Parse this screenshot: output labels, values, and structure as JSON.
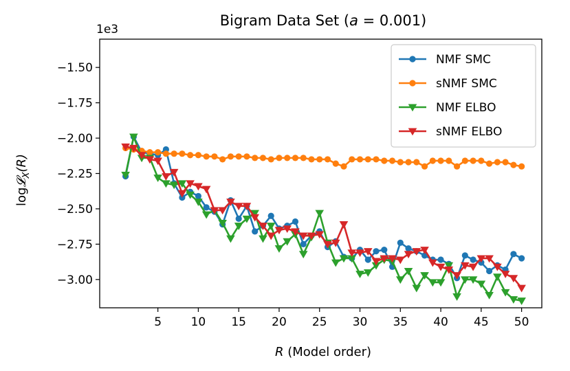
{
  "chart_data": {
    "type": "line",
    "title": "Bigram Data Set (a = 0.001)",
    "title_parts": {
      "prefix": "Bigram Data Set (",
      "variable": "a",
      "equals": " = 0.001)"
    },
    "xlabel": "R (Model order)",
    "xlabel_parts": {
      "variable": "R",
      "rest": " (Model order)"
    },
    "ylabel": "log𝓛X(R)",
    "ylabel_parts": {
      "log": "log",
      "script": "𝓛",
      "sub": "X",
      "arg": "(R)"
    },
    "y_offset_text": "1e3",
    "xlim": [
      -2.2,
      52.5
    ],
    "ylim": [
      -3.2,
      -1.3
    ],
    "x_ticks": [
      5,
      10,
      15,
      20,
      25,
      30,
      35,
      40,
      45,
      50
    ],
    "x_tick_labels": [
      "5",
      "10",
      "15",
      "20",
      "25",
      "30",
      "35",
      "40",
      "45",
      "50"
    ],
    "y_ticks": [
      -3.0,
      -2.75,
      -2.5,
      -2.25,
      -2.0,
      -1.75,
      -1.5
    ],
    "y_tick_labels": [
      "−3.00",
      "−2.75",
      "−2.50",
      "−2.25",
      "−2.00",
      "−1.75",
      "−1.50"
    ],
    "grid": false,
    "legend_position": "top-right",
    "x": [
      1,
      2,
      3,
      4,
      5,
      6,
      7,
      8,
      9,
      10,
      11,
      12,
      13,
      14,
      15,
      16,
      17,
      18,
      19,
      20,
      21,
      22,
      23,
      24,
      25,
      26,
      27,
      28,
      29,
      30,
      31,
      32,
      33,
      34,
      35,
      36,
      37,
      38,
      39,
      40,
      41,
      42,
      43,
      44,
      45,
      46,
      47,
      48,
      49,
      50
    ],
    "series": [
      {
        "name": "NMF SMC",
        "color": "#1f77b4",
        "marker": "circle",
        "values": [
          -2.27,
          -1.99,
          -2.1,
          -2.11,
          -2.12,
          -2.08,
          -2.32,
          -2.42,
          -2.38,
          -2.41,
          -2.49,
          -2.52,
          -2.61,
          -2.44,
          -2.57,
          -2.48,
          -2.66,
          -2.62,
          -2.55,
          -2.64,
          -2.62,
          -2.59,
          -2.75,
          -2.69,
          -2.66,
          -2.77,
          -2.73,
          -2.84,
          -2.85,
          -2.79,
          -2.86,
          -2.8,
          -2.79,
          -2.91,
          -2.74,
          -2.78,
          -2.8,
          -2.83,
          -2.86,
          -2.86,
          -2.89,
          -2.99,
          -2.83,
          -2.86,
          -2.88,
          -2.94,
          -2.9,
          -2.93,
          -2.82,
          -2.85
        ]
      },
      {
        "name": "sNMF SMC",
        "color": "#ff7f0e",
        "marker": "circle",
        "values": [
          -2.07,
          -2.08,
          -2.09,
          -2.1,
          -2.1,
          -2.11,
          -2.11,
          -2.11,
          -2.12,
          -2.12,
          -2.13,
          -2.13,
          -2.15,
          -2.13,
          -2.13,
          -2.13,
          -2.14,
          -2.14,
          -2.15,
          -2.14,
          -2.14,
          -2.14,
          -2.14,
          -2.15,
          -2.15,
          -2.15,
          -2.18,
          -2.2,
          -2.15,
          -2.15,
          -2.15,
          -2.15,
          -2.16,
          -2.16,
          -2.17,
          -2.17,
          -2.17,
          -2.2,
          -2.16,
          -2.16,
          -2.16,
          -2.2,
          -2.16,
          -2.16,
          -2.16,
          -2.18,
          -2.17,
          -2.17,
          -2.19,
          -2.2
        ]
      },
      {
        "name": "NMF ELBO",
        "color": "#2ca02c",
        "marker": "triangle-down",
        "values": [
          -2.26,
          -1.99,
          -2.14,
          -2.14,
          -2.28,
          -2.32,
          -2.33,
          -2.32,
          -2.4,
          -2.45,
          -2.54,
          -2.51,
          -2.6,
          -2.71,
          -2.62,
          -2.57,
          -2.53,
          -2.71,
          -2.62,
          -2.78,
          -2.73,
          -2.68,
          -2.82,
          -2.7,
          -2.53,
          -2.74,
          -2.88,
          -2.85,
          -2.85,
          -2.96,
          -2.95,
          -2.9,
          -2.86,
          -2.87,
          -3.0,
          -2.94,
          -3.06,
          -2.97,
          -3.02,
          -3.02,
          -2.9,
          -3.12,
          -3.0,
          -3.0,
          -3.03,
          -3.11,
          -2.98,
          -3.09,
          -3.14,
          -3.15
        ]
      },
      {
        "name": "sNMF ELBO",
        "color": "#d62728",
        "marker": "triangle-down",
        "values": [
          -2.06,
          -2.07,
          -2.12,
          -2.15,
          -2.16,
          -2.27,
          -2.24,
          -2.39,
          -2.32,
          -2.34,
          -2.36,
          -2.51,
          -2.51,
          -2.45,
          -2.48,
          -2.48,
          -2.56,
          -2.62,
          -2.69,
          -2.65,
          -2.64,
          -2.66,
          -2.69,
          -2.69,
          -2.68,
          -2.75,
          -2.74,
          -2.61,
          -2.81,
          -2.81,
          -2.8,
          -2.87,
          -2.85,
          -2.85,
          -2.86,
          -2.82,
          -2.8,
          -2.79,
          -2.88,
          -2.91,
          -2.93,
          -2.97,
          -2.9,
          -2.91,
          -2.85,
          -2.85,
          -2.91,
          -2.96,
          -2.99,
          -3.06
        ]
      }
    ]
  }
}
